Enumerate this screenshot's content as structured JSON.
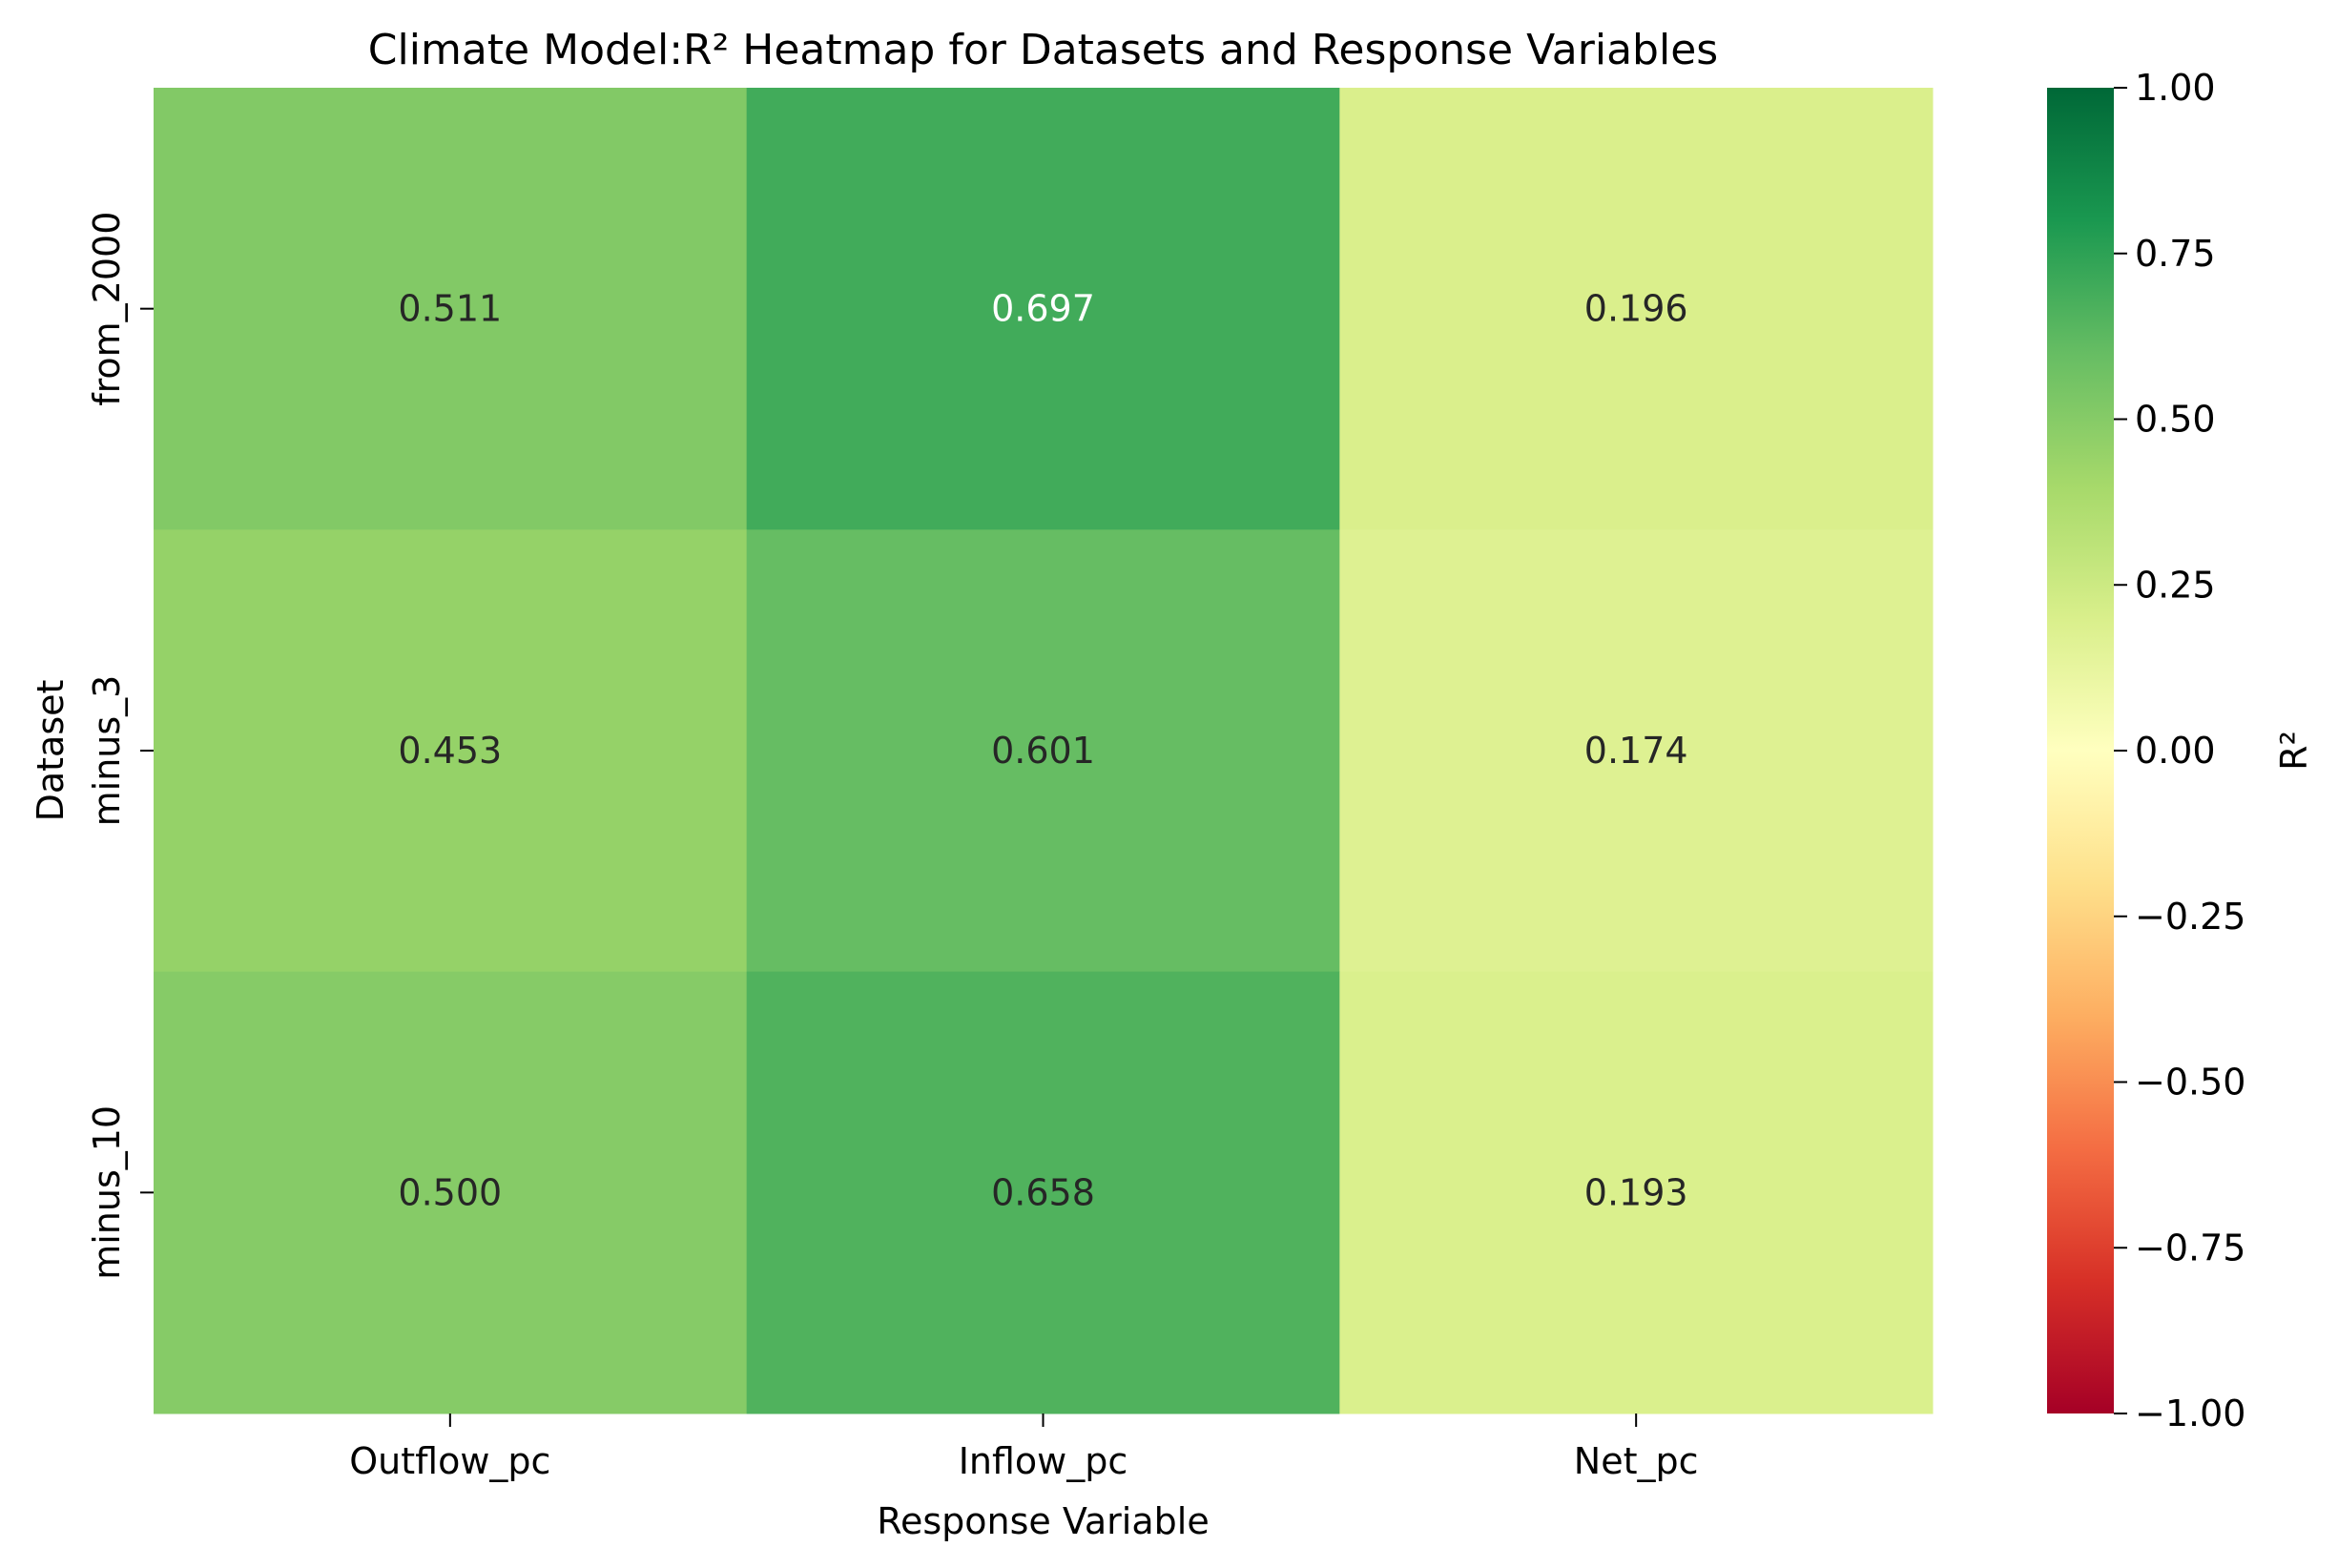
{
  "chart_data": {
    "type": "heatmap",
    "title": "Climate Model:R² Heatmap for Datasets and Response Variables",
    "xlabel": "Response Variable",
    "ylabel": "Dataset",
    "x_categories": [
      "Outflow_pc",
      "Inflow_pc",
      "Net_pc"
    ],
    "y_categories": [
      "from_2000",
      "minus_3",
      "minus_10"
    ],
    "values": [
      [
        0.511,
        0.697,
        0.196
      ],
      [
        0.453,
        0.601,
        0.174
      ],
      [
        0.5,
        0.658,
        0.193
      ]
    ],
    "value_labels": [
      [
        "0.511",
        "0.697",
        "0.196"
      ],
      [
        "0.453",
        "0.601",
        "0.174"
      ],
      [
        "0.500",
        "0.658",
        "0.193"
      ]
    ],
    "colorbar": {
      "label": "R²",
      "vmin": -1.0,
      "vmax": 1.0,
      "colormap": "RdYlGn",
      "ticks": [
        1.0,
        0.75,
        0.5,
        0.25,
        0.0,
        -0.25,
        -0.5,
        -0.75,
        -1.0
      ],
      "tick_labels": [
        "1.00",
        "0.75",
        "0.50",
        "0.25",
        "0.00",
        "−0.25",
        "−0.50",
        "−0.75",
        "−1.00"
      ]
    },
    "grid": false
  }
}
